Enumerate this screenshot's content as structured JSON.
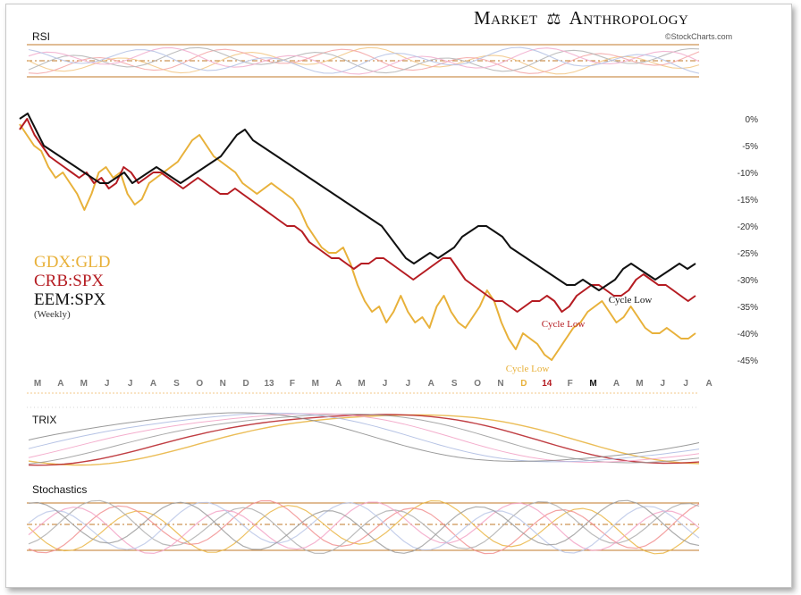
{
  "header": {
    "brand_left": "Market",
    "brand_right": "Anthropology",
    "credit": "©StockCharts.com"
  },
  "panels": {
    "rsi_title": "RSI",
    "trix_title": "TRIX",
    "stoch_title": "Stochastics"
  },
  "legend": {
    "items": [
      {
        "label": "GDX:GLD",
        "color": "#e8b13a"
      },
      {
        "label": "CRB:SPX",
        "color": "#b51c22"
      },
      {
        "label": "EEM:SPX",
        "color": "#111111"
      }
    ],
    "note": "(Weekly)"
  },
  "colors": {
    "gold": "#e8b13a",
    "red": "#b51c22",
    "black": "#111111",
    "grid_lines": "#c07a2a"
  },
  "chart_data": {
    "type": "line",
    "title": "",
    "ylim": [
      -45,
      0
    ],
    "y_ticks": [
      "0%",
      "-5%",
      "-10%",
      "-15%",
      "-20%",
      "-25%",
      "-30%",
      "-35%",
      "-40%",
      "-45%"
    ],
    "month_labels": [
      {
        "label": "M",
        "color": "#777777"
      },
      {
        "label": "A",
        "color": "#777777"
      },
      {
        "label": "M",
        "color": "#777777"
      },
      {
        "label": "J",
        "color": "#777777"
      },
      {
        "label": "J",
        "color": "#777777"
      },
      {
        "label": "A",
        "color": "#777777"
      },
      {
        "label": "S",
        "color": "#777777"
      },
      {
        "label": "O",
        "color": "#777777"
      },
      {
        "label": "N",
        "color": "#777777"
      },
      {
        "label": "D",
        "color": "#777777"
      },
      {
        "label": "13",
        "color": "#777777"
      },
      {
        "label": "F",
        "color": "#777777"
      },
      {
        "label": "M",
        "color": "#777777"
      },
      {
        "label": "A",
        "color": "#777777"
      },
      {
        "label": "M",
        "color": "#777777"
      },
      {
        "label": "J",
        "color": "#777777"
      },
      {
        "label": "J",
        "color": "#777777"
      },
      {
        "label": "A",
        "color": "#777777"
      },
      {
        "label": "S",
        "color": "#777777"
      },
      {
        "label": "O",
        "color": "#777777"
      },
      {
        "label": "N",
        "color": "#777777"
      },
      {
        "label": "D",
        "color": "#e8b13a"
      },
      {
        "label": "14",
        "color": "#b51c22"
      },
      {
        "label": "F",
        "color": "#777777"
      },
      {
        "label": "M",
        "color": "#111111"
      },
      {
        "label": "A",
        "color": "#777777"
      },
      {
        "label": "M",
        "color": "#777777"
      },
      {
        "label": "J",
        "color": "#777777"
      },
      {
        "label": "J",
        "color": "#777777"
      },
      {
        "label": "A",
        "color": "#777777"
      }
    ],
    "series": [
      {
        "name": "GDX:GLD",
        "color": "#e8b13a",
        "values": [
          -1,
          -3,
          -5,
          -6,
          -9,
          -11,
          -10,
          -12,
          -14,
          -17,
          -14,
          -10,
          -9,
          -11,
          -10,
          -14,
          -16,
          -15,
          -12,
          -11,
          -10,
          -9,
          -8,
          -6,
          -4,
          -3,
          -5,
          -7,
          -8,
          -9,
          -10,
          -12,
          -13,
          -14,
          -13,
          -12,
          -13,
          -14,
          -15,
          -17,
          -20,
          -22,
          -24,
          -25,
          -25,
          -24,
          -27,
          -31,
          -34,
          -36,
          -35,
          -38,
          -36,
          -33,
          -36,
          -38,
          -37,
          -39,
          -35,
          -33,
          -36,
          -38,
          -39,
          -37,
          -35,
          -32,
          -34,
          -38,
          -41,
          -43,
          -40,
          -41,
          -42,
          -44,
          -45,
          -43,
          -41,
          -39,
          -38,
          -36,
          -35,
          -34,
          -36,
          -38,
          -37,
          -35,
          -37,
          -39,
          -40,
          -40,
          -39,
          -40,
          -41,
          -41,
          -40
        ]
      },
      {
        "name": "CRB:SPX",
        "color": "#b51c22",
        "values": [
          -2,
          0,
          -3,
          -5,
          -7,
          -8,
          -9,
          -10,
          -11,
          -10,
          -12,
          -11,
          -13,
          -12,
          -9,
          -10,
          -12,
          -11,
          -10,
          -10,
          -11,
          -12,
          -13,
          -12,
          -11,
          -12,
          -13,
          -14,
          -14,
          -13,
          -14,
          -15,
          -16,
          -17,
          -18,
          -19,
          -20,
          -20,
          -21,
          -23,
          -24,
          -25,
          -26,
          -26,
          -27,
          -28,
          -27,
          -27,
          -26,
          -26,
          -27,
          -28,
          -29,
          -30,
          -29,
          -28,
          -27,
          -26,
          -26,
          -28,
          -30,
          -31,
          -32,
          -33,
          -34,
          -34,
          -35,
          -36,
          -35,
          -34,
          -34,
          -33,
          -34,
          -36,
          -35,
          -33,
          -32,
          -31,
          -31,
          -32,
          -33,
          -33,
          -32,
          -30,
          -29,
          -30,
          -31,
          -31,
          -32,
          -33,
          -34,
          -33
        ]
      },
      {
        "name": "EEM:SPX",
        "color": "#111111",
        "values": [
          0,
          1,
          -2,
          -5,
          -6,
          -7,
          -8,
          -9,
          -10,
          -11,
          -12,
          -12,
          -11,
          -10,
          -12,
          -11,
          -10,
          -9,
          -10,
          -11,
          -12,
          -11,
          -10,
          -9,
          -8,
          -7,
          -5,
          -3,
          -2,
          -4,
          -5,
          -6,
          -7,
          -8,
          -9,
          -10,
          -11,
          -12,
          -13,
          -14,
          -15,
          -16,
          -17,
          -18,
          -19,
          -20,
          -22,
          -24,
          -26,
          -27,
          -26,
          -25,
          -26,
          -25,
          -24,
          -22,
          -21,
          -20,
          -20,
          -21,
          -22,
          -24,
          -25,
          -26,
          -27,
          -28,
          -29,
          -30,
          -31,
          -31,
          -30,
          -31,
          -32,
          -31,
          -30,
          -28,
          -27,
          -28,
          -29,
          -30,
          -29,
          -28,
          -27,
          -28,
          -27
        ]
      }
    ],
    "annotations": [
      {
        "text": "Cycle Low",
        "color": "#e8b13a"
      },
      {
        "text": "Cycle Low",
        "color": "#b51c22"
      },
      {
        "text": "Cycle Low",
        "color": "#111111"
      }
    ]
  }
}
